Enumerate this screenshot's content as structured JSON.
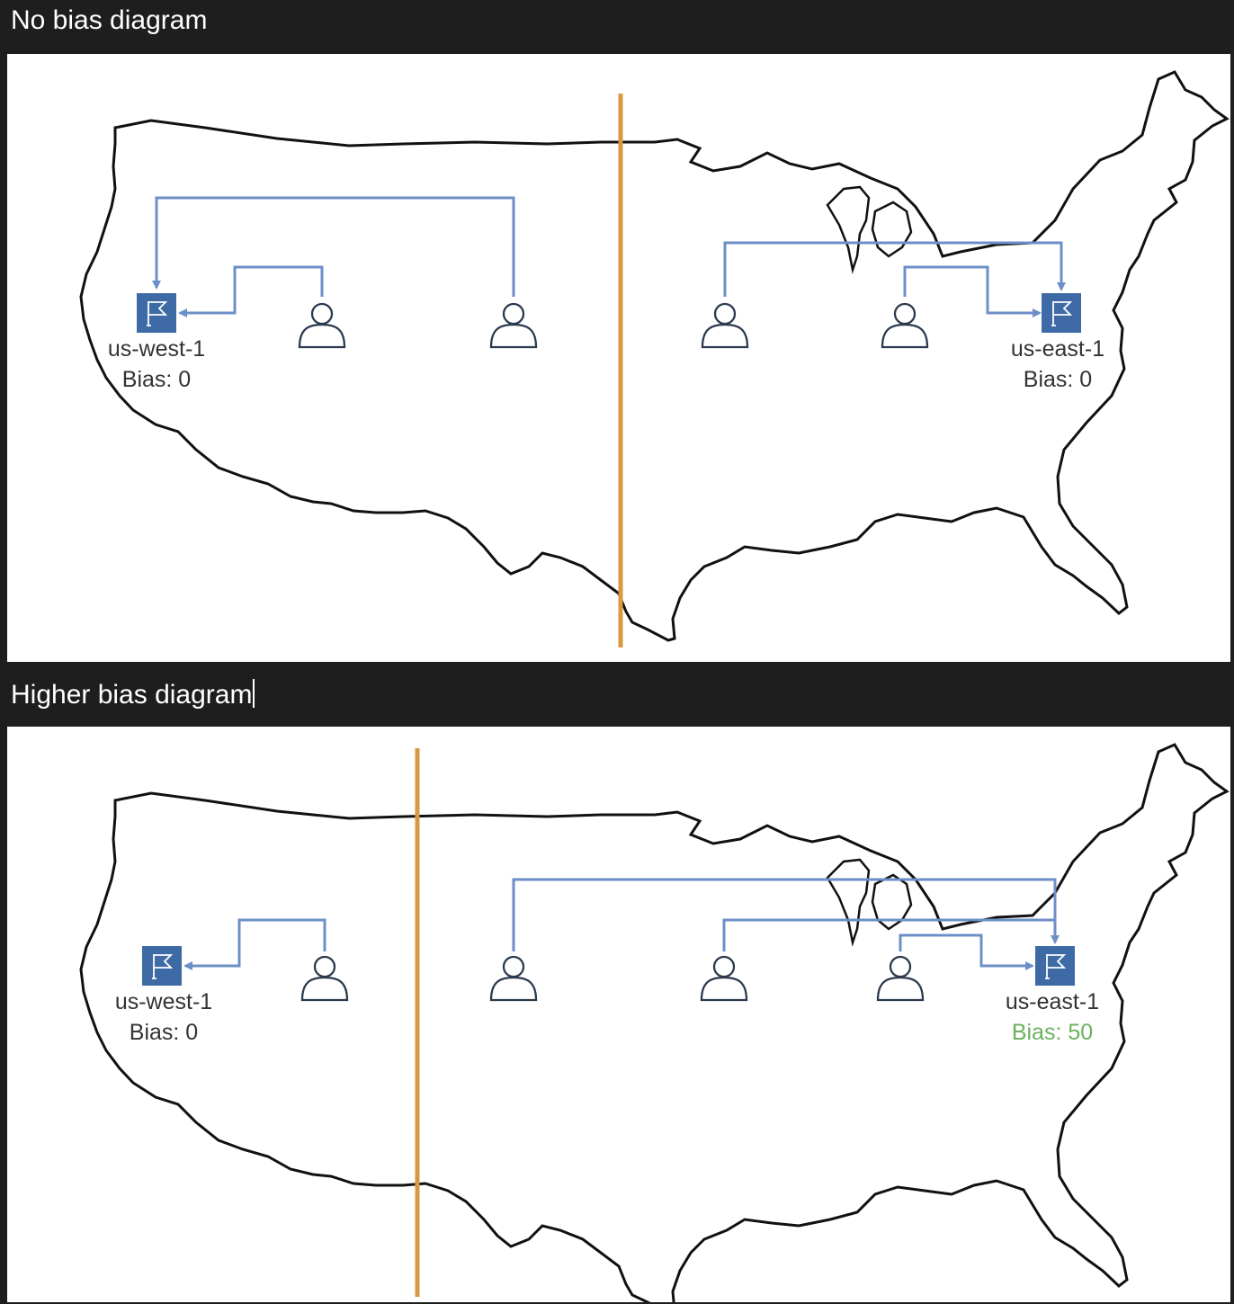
{
  "headings": {
    "no_bias": "No bias diagram",
    "higher_bias": "Higher bias diagram"
  },
  "diagram_no_bias": {
    "west_region": {
      "name": "us-west-1",
      "bias": "Bias: 0"
    },
    "east_region": {
      "name": "us-east-1",
      "bias": "Bias: 0"
    },
    "users_routed_west": 2,
    "users_routed_east": 2
  },
  "diagram_higher_bias": {
    "west_region": {
      "name": "us-west-1",
      "bias": "Bias: 0"
    },
    "east_region": {
      "name": "us-east-1",
      "bias": "Bias: 50"
    },
    "users_routed_west": 1,
    "users_routed_east": 3
  },
  "colors": {
    "background": "#1e1e1e",
    "route_line": "#6c8fc7",
    "region_flag": "#3e6ba6",
    "boundary_line": "#d79a42",
    "bias_highlight": "#6bb15c",
    "map_outline": "#111111"
  }
}
